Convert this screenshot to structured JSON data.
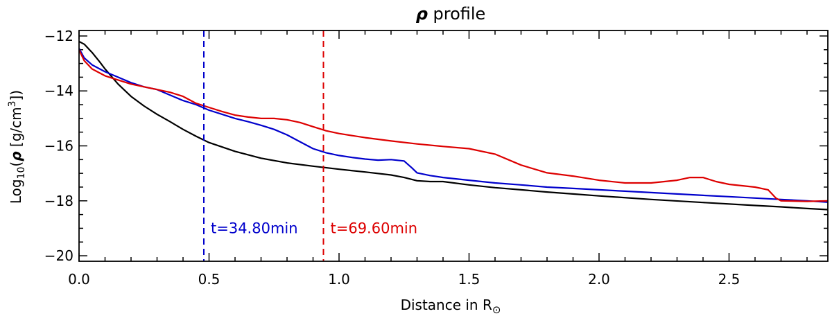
{
  "chart_data": {
    "type": "line",
    "title": "ρ profile",
    "title_symbol": "ρ",
    "title_rest": " profile",
    "xlabel": "Distance in R⊙",
    "xlabel_main": "Distance in R",
    "xlabel_sub": "⊙",
    "ylabel": "Log₁₀(ρ [g/cm³])",
    "ylabel_parts": {
      "log": "Log",
      "sub10": "10",
      "open": "(",
      "rho": "ρ",
      "mid": " [g/cm",
      "sup3": "3",
      "close": "])"
    },
    "xlim": [
      0.0,
      2.88
    ],
    "ylim": [
      -20.2,
      -11.8
    ],
    "x_ticks": [
      0.0,
      0.5,
      1.0,
      1.5,
      2.0,
      2.5
    ],
    "x_tick_labels": [
      "0.0",
      "0.5",
      "1.0",
      "1.5",
      "2.0",
      "2.5"
    ],
    "x_minor_step": 0.1,
    "y_ticks": [
      -20,
      -18,
      -16,
      -14,
      -12
    ],
    "y_tick_labels": [
      "−20",
      "−18",
      "−16",
      "−14",
      "−12"
    ],
    "y_minor_step": 0.5,
    "grid": false,
    "series": [
      {
        "color": "#000000",
        "points": [
          [
            0.0,
            -12.2
          ],
          [
            0.02,
            -12.3
          ],
          [
            0.05,
            -12.6
          ],
          [
            0.08,
            -12.95
          ],
          [
            0.1,
            -13.2
          ],
          [
            0.15,
            -13.75
          ],
          [
            0.2,
            -14.2
          ],
          [
            0.25,
            -14.55
          ],
          [
            0.3,
            -14.85
          ],
          [
            0.35,
            -15.12
          ],
          [
            0.4,
            -15.4
          ],
          [
            0.45,
            -15.65
          ],
          [
            0.5,
            -15.88
          ],
          [
            0.6,
            -16.2
          ],
          [
            0.7,
            -16.45
          ],
          [
            0.8,
            -16.62
          ],
          [
            0.9,
            -16.74
          ],
          [
            1.0,
            -16.85
          ],
          [
            1.1,
            -16.95
          ],
          [
            1.2,
            -17.06
          ],
          [
            1.25,
            -17.15
          ],
          [
            1.3,
            -17.27
          ],
          [
            1.35,
            -17.3
          ],
          [
            1.4,
            -17.3
          ],
          [
            1.5,
            -17.42
          ],
          [
            1.6,
            -17.52
          ],
          [
            1.7,
            -17.6
          ],
          [
            1.8,
            -17.68
          ],
          [
            1.9,
            -17.75
          ],
          [
            2.0,
            -17.82
          ],
          [
            2.2,
            -17.95
          ],
          [
            2.4,
            -18.06
          ],
          [
            2.6,
            -18.17
          ],
          [
            2.7,
            -18.22
          ],
          [
            2.8,
            -18.28
          ],
          [
            2.88,
            -18.32
          ]
        ]
      },
      {
        "color": "#0000cc",
        "points": [
          [
            0.0,
            -12.45
          ],
          [
            0.02,
            -12.8
          ],
          [
            0.05,
            -13.05
          ],
          [
            0.1,
            -13.3
          ],
          [
            0.15,
            -13.5
          ],
          [
            0.2,
            -13.7
          ],
          [
            0.25,
            -13.85
          ],
          [
            0.3,
            -13.95
          ],
          [
            0.35,
            -14.15
          ],
          [
            0.4,
            -14.35
          ],
          [
            0.45,
            -14.5
          ],
          [
            0.5,
            -14.7
          ],
          [
            0.55,
            -14.85
          ],
          [
            0.6,
            -15.0
          ],
          [
            0.65,
            -15.12
          ],
          [
            0.7,
            -15.25
          ],
          [
            0.75,
            -15.4
          ],
          [
            0.8,
            -15.6
          ],
          [
            0.85,
            -15.85
          ],
          [
            0.9,
            -16.1
          ],
          [
            0.95,
            -16.25
          ],
          [
            1.0,
            -16.35
          ],
          [
            1.05,
            -16.42
          ],
          [
            1.1,
            -16.48
          ],
          [
            1.15,
            -16.52
          ],
          [
            1.2,
            -16.5
          ],
          [
            1.25,
            -16.55
          ],
          [
            1.28,
            -16.8
          ],
          [
            1.3,
            -16.98
          ],
          [
            1.35,
            -17.08
          ],
          [
            1.4,
            -17.15
          ],
          [
            1.5,
            -17.25
          ],
          [
            1.6,
            -17.35
          ],
          [
            1.7,
            -17.42
          ],
          [
            1.8,
            -17.5
          ],
          [
            1.9,
            -17.55
          ],
          [
            2.0,
            -17.6
          ],
          [
            2.1,
            -17.65
          ],
          [
            2.2,
            -17.7
          ],
          [
            2.3,
            -17.75
          ],
          [
            2.4,
            -17.8
          ],
          [
            2.5,
            -17.85
          ],
          [
            2.6,
            -17.9
          ],
          [
            2.7,
            -17.95
          ],
          [
            2.8,
            -18.0
          ],
          [
            2.88,
            -18.05
          ]
        ]
      },
      {
        "color": "#dd0000",
        "points": [
          [
            0.0,
            -12.5
          ],
          [
            0.02,
            -12.9
          ],
          [
            0.05,
            -13.2
          ],
          [
            0.1,
            -13.45
          ],
          [
            0.15,
            -13.6
          ],
          [
            0.2,
            -13.75
          ],
          [
            0.25,
            -13.85
          ],
          [
            0.3,
            -13.95
          ],
          [
            0.35,
            -14.05
          ],
          [
            0.4,
            -14.2
          ],
          [
            0.45,
            -14.45
          ],
          [
            0.5,
            -14.6
          ],
          [
            0.55,
            -14.75
          ],
          [
            0.6,
            -14.88
          ],
          [
            0.65,
            -14.95
          ],
          [
            0.7,
            -15.0
          ],
          [
            0.75,
            -15.0
          ],
          [
            0.8,
            -15.05
          ],
          [
            0.85,
            -15.15
          ],
          [
            0.9,
            -15.3
          ],
          [
            0.95,
            -15.45
          ],
          [
            1.0,
            -15.55
          ],
          [
            1.1,
            -15.7
          ],
          [
            1.2,
            -15.82
          ],
          [
            1.3,
            -15.93
          ],
          [
            1.4,
            -16.02
          ],
          [
            1.5,
            -16.1
          ],
          [
            1.6,
            -16.3
          ],
          [
            1.7,
            -16.7
          ],
          [
            1.8,
            -16.98
          ],
          [
            1.9,
            -17.1
          ],
          [
            2.0,
            -17.25
          ],
          [
            2.1,
            -17.35
          ],
          [
            2.2,
            -17.35
          ],
          [
            2.3,
            -17.25
          ],
          [
            2.35,
            -17.15
          ],
          [
            2.4,
            -17.15
          ],
          [
            2.45,
            -17.3
          ],
          [
            2.5,
            -17.4
          ],
          [
            2.6,
            -17.5
          ],
          [
            2.65,
            -17.6
          ],
          [
            2.68,
            -17.9
          ],
          [
            2.7,
            -18.0
          ],
          [
            2.8,
            -18.02
          ],
          [
            2.88,
            -18.0
          ]
        ]
      }
    ],
    "vlines": [
      {
        "x": 0.48,
        "color": "#0000cc",
        "label": "t=34.80min"
      },
      {
        "x": 0.94,
        "color": "#dd0000",
        "label": "t=69.60min"
      }
    ],
    "annotation_y": -19.0
  }
}
